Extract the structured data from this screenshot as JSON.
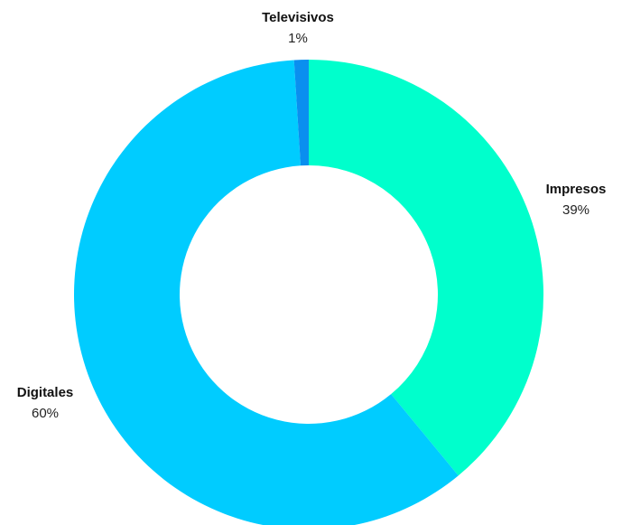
{
  "chart_data": {
    "type": "pie",
    "donut": true,
    "start_angle_deg": 0,
    "direction": "clockwise",
    "slices": [
      {
        "label": "Impresos",
        "value": 39,
        "value_label": "39%",
        "color": "#00FFCC"
      },
      {
        "label": "Digitales",
        "value": 60,
        "value_label": "60%",
        "color": "#00CCFF"
      },
      {
        "label": "Televisivos",
        "value": 1,
        "value_label": "1%",
        "color": "#0A8FEF"
      }
    ],
    "title": "",
    "legend": "none"
  }
}
